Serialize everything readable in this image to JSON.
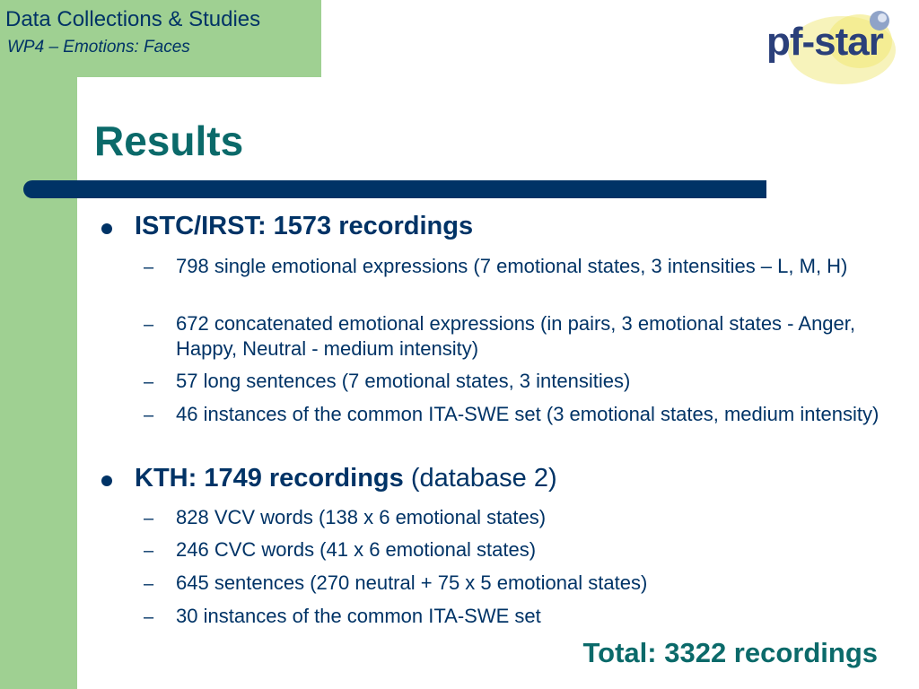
{
  "header": {
    "title": "Data Collections & Studies",
    "subtitle": "WP4 – Emotions: Faces"
  },
  "logo": {
    "text": "pf-star",
    "icon": "pf-star-logo-icon"
  },
  "slide": {
    "title": "Results",
    "sections": [
      {
        "heading_bold": "ISTC/IRST: 1573 recordings",
        "heading_rest": "",
        "items": [
          "798 single emotional expressions (7 emotional states, 3 intensities – L, M, H)",
          "672 concatenated emotional expressions (in pairs, 3 emotional states - Anger, Happy, Neutral - medium intensity)",
          "57 long sentences (7 emotional states, 3 intensities)",
          "46 instances of the common ITA-SWE set (3 emotional states, medium intensity)"
        ]
      },
      {
        "heading_bold": "KTH: 1749 recordings",
        "heading_rest": " (database 2)",
        "items": [
          "828 VCV words (138 x 6 emotional states)",
          "246 CVC words (41 x 6 emotional states)",
          "645 sentences (270 neutral + 75 x 5 emotional states)",
          "30 instances of the common ITA-SWE set"
        ]
      }
    ],
    "total": "Total: 3322 recordings"
  },
  "colors": {
    "green": "#9fd092",
    "navy": "#003366",
    "teal": "#0b6a6a"
  }
}
